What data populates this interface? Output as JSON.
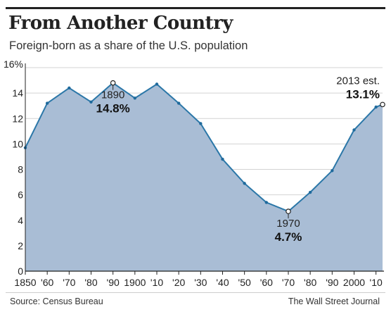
{
  "title": "From Another Country",
  "subtitle": "Foreign-born as a share of the U.S. population",
  "source": "Source: Census Bureau",
  "credit": "The Wall Street Journal",
  "colors": {
    "area": "#a9bdd5",
    "line": "#2b77a8",
    "marker": "#1f6a9c",
    "grid": "#d3d3d3",
    "axis": "#222222"
  },
  "chart_data": {
    "type": "area",
    "x": [
      1850,
      1860,
      1870,
      1880,
      1890,
      1900,
      1910,
      1920,
      1930,
      1940,
      1950,
      1960,
      1970,
      1980,
      1990,
      2000,
      2010,
      2013
    ],
    "series": [
      {
        "values": [
          9.7,
          13.2,
          14.4,
          13.3,
          14.8,
          13.6,
          14.7,
          13.2,
          11.6,
          8.8,
          6.9,
          5.4,
          4.7,
          6.2,
          7.9,
          11.1,
          12.9,
          13.1
        ]
      }
    ],
    "ylim": [
      0,
      16
    ],
    "y_ticks": [
      0,
      2,
      4,
      6,
      8,
      10,
      12,
      14,
      16
    ],
    "y_tick_labels": [
      "0",
      "2",
      "4",
      "6",
      "8",
      "10",
      "12",
      "14",
      "16%"
    ],
    "x_ticks": [
      1850,
      1860,
      1870,
      1880,
      1890,
      1900,
      1910,
      1920,
      1930,
      1940,
      1950,
      1960,
      1970,
      1980,
      1990,
      2000,
      2010
    ],
    "x_tick_labels": [
      "1850",
      "'60",
      "'70",
      "'80",
      "'90",
      "1900",
      "'10",
      "'20",
      "'30",
      "'40",
      "'50",
      "'60",
      "'70",
      "'80",
      "'90",
      "2000",
      "'10"
    ],
    "grid": true,
    "annotations": [
      {
        "x": 1890,
        "y": 14.8,
        "label": "1890",
        "value": "14.8%",
        "anchor": "below"
      },
      {
        "x": 1970,
        "y": 4.7,
        "label": "1970",
        "value": "4.7%",
        "anchor": "below"
      },
      {
        "x": 2013,
        "y": 13.1,
        "label": "2013 est.",
        "value": "13.1%",
        "anchor": "above-left"
      }
    ]
  }
}
